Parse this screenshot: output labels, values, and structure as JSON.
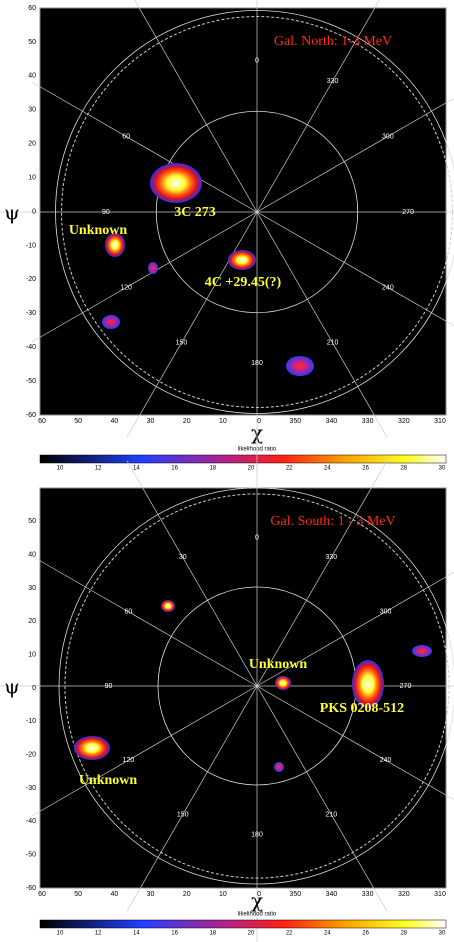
{
  "panels": [
    {
      "title": "Gal. North: 1-3 MeV",
      "annotations": [
        "3C 273",
        "Unknown",
        "4C +29.45(?)"
      ],
      "y_ticks": [
        60,
        50,
        40,
        30,
        20,
        10,
        0,
        -10,
        -20,
        -30,
        -40,
        -50,
        -60
      ],
      "x_ticks": [
        60,
        50,
        40,
        30,
        20,
        10,
        0,
        350,
        340,
        330,
        320,
        310
      ],
      "grid_labels": [
        "0",
        "330",
        "300",
        "270",
        "240",
        "210",
        "180",
        "150",
        "120",
        "90",
        "60"
      ],
      "x_label": "χ",
      "y_label": "ψ",
      "colorbar_label": "likelihood ratio",
      "colorbar_ticks": [
        10,
        12,
        14,
        16,
        18,
        20,
        22,
        24,
        26,
        28,
        30
      ]
    },
    {
      "title": "Gal. South: 1 - 3 MeV",
      "annotations": [
        "Unknown",
        "PKS 0208-512",
        "Unknown"
      ],
      "y_ticks": [
        50,
        40,
        30,
        20,
        10,
        0,
        -10,
        -20,
        -30,
        -40,
        -50,
        -60
      ],
      "x_ticks": [
        60,
        50,
        40,
        30,
        20,
        10,
        0,
        350,
        340,
        330,
        320,
        310
      ],
      "grid_labels": [
        "0",
        "30",
        "60",
        "90",
        "120",
        "150",
        "180",
        "210",
        "240",
        "270",
        "300",
        "330"
      ],
      "x_label": "χ",
      "y_label": "ψ",
      "colorbar_label": "likelihood ratio",
      "colorbar_ticks": [
        10,
        12,
        14,
        16,
        18,
        20,
        22,
        24,
        26,
        28,
        30
      ]
    }
  ]
}
